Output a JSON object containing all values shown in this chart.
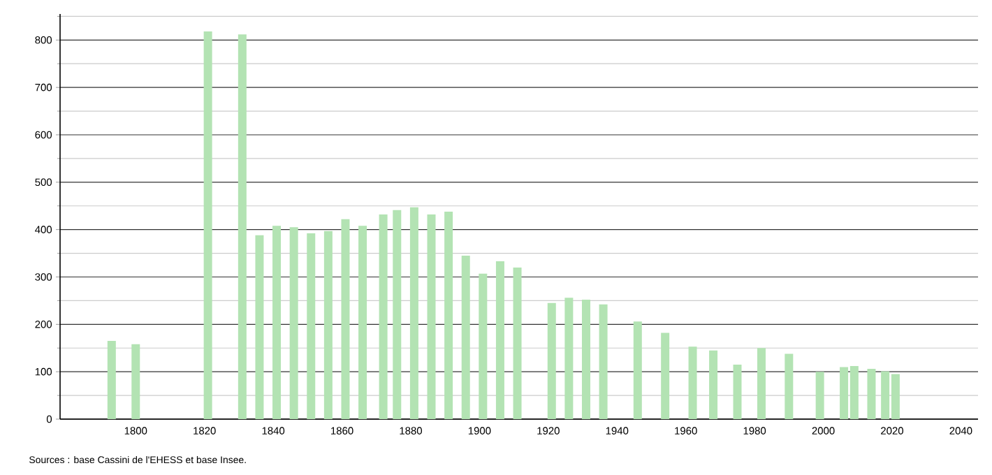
{
  "chart_data": {
    "type": "bar",
    "x": [
      1793,
      1800,
      1821,
      1831,
      1836,
      1841,
      1846,
      1851,
      1856,
      1861,
      1866,
      1872,
      1876,
      1881,
      1886,
      1891,
      1896,
      1901,
      1906,
      1911,
      1921,
      1926,
      1931,
      1936,
      1946,
      1954,
      1962,
      1968,
      1975,
      1982,
      1990,
      1999,
      2006,
      2009,
      2014,
      2018,
      2021
    ],
    "values": [
      165,
      158,
      818,
      812,
      388,
      408,
      405,
      392,
      397,
      422,
      408,
      432,
      441,
      447,
      432,
      438,
      345,
      307,
      333,
      320,
      245,
      256,
      252,
      242,
      206,
      182,
      153,
      145,
      115,
      150,
      138,
      100,
      110,
      112,
      106,
      101,
      95
    ],
    "color": "#b3e3b3",
    "xlim": [
      1778,
      2045
    ],
    "ylim": [
      0,
      855
    ],
    "xticks": [
      1800,
      1820,
      1840,
      1860,
      1880,
      1900,
      1920,
      1940,
      1960,
      1980,
      2000,
      2020,
      2040
    ],
    "yticks": [
      0,
      {
        "value": 50,
        "label": null
      },
      100,
      {
        "value": 150,
        "label": null
      },
      200,
      {
        "value": 250,
        "label": null
      },
      300,
      {
        "value": 350,
        "label": null
      },
      400,
      {
        "value": 450,
        "label": null
      },
      500,
      {
        "value": 550,
        "label": null
      },
      600,
      {
        "value": 650,
        "label": null
      },
      700,
      {
        "value": 750,
        "label": null
      },
      800,
      {
        "value": 850,
        "label": null
      }
    ],
    "grid": "y",
    "annotations": [
      "Sources : base Cassini de l'EHESS et base Insee."
    ]
  }
}
